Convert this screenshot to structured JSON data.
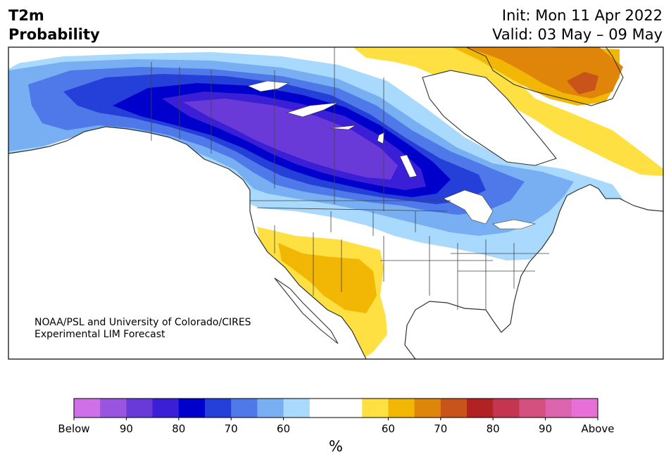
{
  "title": {
    "left_line1": "T2m",
    "left_line2": "Probability",
    "right_line1": "Init: Mon 11 Apr 2022",
    "right_line2": "Valid: 03 May – 09 May"
  },
  "credit": {
    "line1": "NOAA/PSL and University of Colorado/CIRES",
    "line2": "Experimental LIM Forecast"
  },
  "map": {
    "region": "North America",
    "shading": "Probability of below / above normal 2 m temperature",
    "cold_area": "Alaska, western and central Canada, northern and central US",
    "warm_areas": [
      "US Southwest and northern Mexico",
      "Greenland",
      "northeastern Canada"
    ]
  },
  "colorbar": {
    "unit": "%",
    "colors": [
      "#d070e8",
      "#9a55e0",
      "#6a3ad8",
      "#3a1fd6",
      "#0000cc",
      "#2440d8",
      "#4f78e8",
      "#78aef2",
      "#a9d9fc",
      "#ffffff",
      "#ffffff",
      "#fee043",
      "#f2b705",
      "#df860a",
      "#c85419",
      "#b22222",
      "#c43650",
      "#d24f7e",
      "#dc63ad",
      "#e770d8"
    ],
    "labels": [
      {
        "text": "Below",
        "index": 0
      },
      {
        "text": "90",
        "index": 2
      },
      {
        "text": "80",
        "index": 4
      },
      {
        "text": "70",
        "index": 6
      },
      {
        "text": "60",
        "index": 8
      },
      {
        "text": "60",
        "index": 12
      },
      {
        "text": "70",
        "index": 14
      },
      {
        "text": "80",
        "index": 16
      },
      {
        "text": "90",
        "index": 18
      },
      {
        "text": "Above",
        "index": 20
      }
    ]
  }
}
